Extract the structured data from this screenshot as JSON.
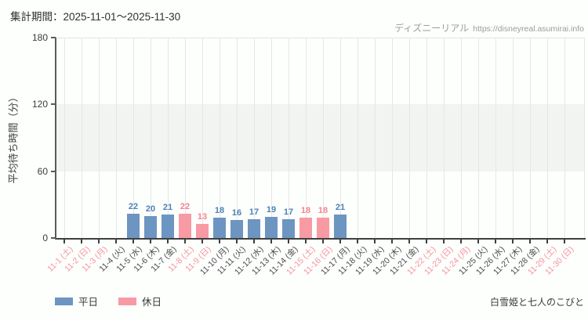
{
  "header": {
    "title": "集計期間：2025-11-01～2025-11-30",
    "watermark_brand": "ディズニーリアル",
    "watermark_url": "https://disneyreal.asumirai.info"
  },
  "footer": {
    "attraction_name": "白雪姫と七人のこびと"
  },
  "legend": {
    "weekday_label": "平日",
    "holiday_label": "休日"
  },
  "colors": {
    "weekday_bar": "#6d95c1",
    "holiday_bar": "#f89aa4",
    "weekday_value_text": "#4d81b7",
    "holiday_value_text": "#f5828e",
    "weekday_tick_text": "#4a4a4a",
    "holiday_tick_text": "#f8929d",
    "band_fill": "#f2f4f1"
  },
  "chart_data": {
    "type": "bar",
    "title": "集計期間：2025-11-01～2025-11-30",
    "xlabel": "",
    "ylabel": "平均待ち時間（分）",
    "ylim": [
      0,
      180
    ],
    "yticks": [
      0,
      60,
      120,
      180
    ],
    "shaded_band_y": [
      60,
      120
    ],
    "grid": "vertical",
    "legend_entries": [
      "平日",
      "休日"
    ],
    "legend_position": "bottom-left",
    "categories": [
      "11-1 (土)",
      "11-2 (日)",
      "11-3 (月)",
      "11-4 (火)",
      "11-5 (水)",
      "11-6 (木)",
      "11-7 (金)",
      "11-8 (土)",
      "11-9 (日)",
      "11-10 (月)",
      "11-11 (火)",
      "11-12 (水)",
      "11-13 (木)",
      "11-14 (金)",
      "11-15 (土)",
      "11-16 (日)",
      "11-17 (月)",
      "11-18 (火)",
      "11-19 (水)",
      "11-20 (木)",
      "11-21 (金)",
      "11-22 (土)",
      "11-23 (日)",
      "11-24 (月)",
      "11-25 (火)",
      "11-26 (水)",
      "11-27 (木)",
      "11-28 (金)",
      "11-29 (土)",
      "11-30 (日)"
    ],
    "day_types": [
      "holiday",
      "holiday",
      "holiday",
      "weekday",
      "weekday",
      "weekday",
      "weekday",
      "holiday",
      "holiday",
      "weekday",
      "weekday",
      "weekday",
      "weekday",
      "weekday",
      "holiday",
      "holiday",
      "weekday",
      "weekday",
      "weekday",
      "weekday",
      "weekday",
      "holiday",
      "holiday",
      "holiday",
      "weekday",
      "weekday",
      "weekday",
      "weekday",
      "holiday",
      "holiday"
    ],
    "values": [
      null,
      null,
      null,
      null,
      22,
      20,
      21,
      22,
      13,
      18,
      16,
      17,
      19,
      17,
      18,
      18,
      21,
      null,
      null,
      null,
      null,
      null,
      null,
      null,
      null,
      null,
      null,
      null,
      null,
      null
    ]
  }
}
